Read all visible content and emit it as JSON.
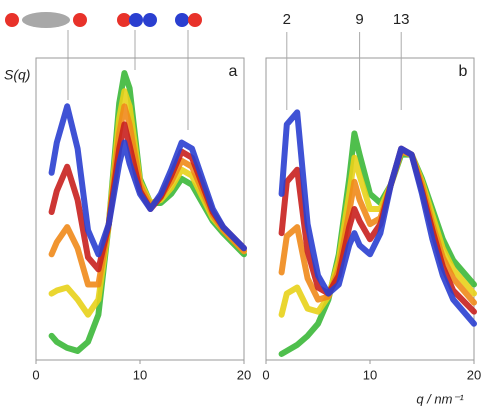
{
  "chart_data": [
    {
      "type": "line",
      "title": "a",
      "ylabel": "S(q)",
      "x": [
        1.5,
        2,
        3,
        4,
        5,
        6,
        7,
        8,
        8.5,
        9,
        10,
        11,
        12,
        13,
        14,
        15,
        16,
        17,
        18,
        20
      ],
      "xlim": [
        0,
        20
      ],
      "ylim": [
        0,
        1
      ],
      "xticks": [
        0,
        10,
        20
      ],
      "series": [
        {
          "color": "#3cb83a",
          "values": [
            0.08,
            0.06,
            0.04,
            0.03,
            0.06,
            0.15,
            0.45,
            0.85,
            0.95,
            0.9,
            0.6,
            0.52,
            0.52,
            0.55,
            0.6,
            0.58,
            0.52,
            0.46,
            0.42,
            0.35
          ]
        },
        {
          "color": "#e8d21a",
          "values": [
            0.22,
            0.23,
            0.24,
            0.2,
            0.15,
            0.2,
            0.45,
            0.8,
            0.89,
            0.84,
            0.59,
            0.52,
            0.53,
            0.57,
            0.63,
            0.61,
            0.54,
            0.47,
            0.43,
            0.36
          ]
        },
        {
          "color": "#f08a1a",
          "values": [
            0.35,
            0.39,
            0.44,
            0.37,
            0.25,
            0.25,
            0.45,
            0.75,
            0.84,
            0.78,
            0.58,
            0.51,
            0.54,
            0.59,
            0.66,
            0.64,
            0.56,
            0.48,
            0.43,
            0.36
          ]
        },
        {
          "color": "#c8201e",
          "values": [
            0.49,
            0.56,
            0.64,
            0.53,
            0.34,
            0.3,
            0.45,
            0.7,
            0.78,
            0.71,
            0.56,
            0.5,
            0.54,
            0.61,
            0.69,
            0.67,
            0.58,
            0.49,
            0.44,
            0.37
          ]
        },
        {
          "color": "#2a3fd0",
          "values": [
            0.62,
            0.72,
            0.84,
            0.7,
            0.43,
            0.35,
            0.45,
            0.65,
            0.72,
            0.65,
            0.55,
            0.5,
            0.55,
            0.63,
            0.72,
            0.7,
            0.6,
            0.5,
            0.44,
            0.37
          ]
        }
      ]
    },
    {
      "type": "line",
      "title": "b",
      "xlabel": "q / nm⁻¹",
      "annotations": [
        "2",
        "9",
        "13"
      ],
      "x": [
        1.5,
        2,
        3,
        4,
        5,
        6,
        7,
        8,
        8.5,
        9,
        10,
        11,
        12,
        13,
        14,
        15,
        16,
        17,
        18,
        20
      ],
      "xlim": [
        0,
        20
      ],
      "ylim": [
        0,
        1
      ],
      "xticks": [
        0,
        10,
        20
      ],
      "series": [
        {
          "color": "#3cb83a",
          "values": [
            0.02,
            0.03,
            0.05,
            0.08,
            0.12,
            0.2,
            0.35,
            0.6,
            0.75,
            0.68,
            0.55,
            0.52,
            0.58,
            0.68,
            0.68,
            0.6,
            0.5,
            0.4,
            0.33,
            0.25
          ]
        },
        {
          "color": "#e8d21a",
          "values": [
            0.15,
            0.22,
            0.24,
            0.17,
            0.16,
            0.21,
            0.33,
            0.55,
            0.67,
            0.61,
            0.5,
            0.5,
            0.58,
            0.69,
            0.68,
            0.59,
            0.48,
            0.37,
            0.3,
            0.22
          ]
        },
        {
          "color": "#f08a1a",
          "values": [
            0.29,
            0.41,
            0.44,
            0.27,
            0.2,
            0.21,
            0.3,
            0.49,
            0.59,
            0.53,
            0.45,
            0.47,
            0.58,
            0.69,
            0.68,
            0.58,
            0.45,
            0.34,
            0.27,
            0.19
          ]
        },
        {
          "color": "#c8201e",
          "values": [
            0.42,
            0.59,
            0.63,
            0.36,
            0.24,
            0.22,
            0.28,
            0.44,
            0.5,
            0.46,
            0.4,
            0.45,
            0.58,
            0.7,
            0.68,
            0.56,
            0.43,
            0.31,
            0.23,
            0.16
          ]
        },
        {
          "color": "#2a3fd0",
          "values": [
            0.55,
            0.78,
            0.82,
            0.45,
            0.28,
            0.22,
            0.25,
            0.38,
            0.42,
            0.38,
            0.35,
            0.42,
            0.58,
            0.7,
            0.68,
            0.55,
            0.4,
            0.28,
            0.2,
            0.12
          ]
        }
      ]
    }
  ]
}
